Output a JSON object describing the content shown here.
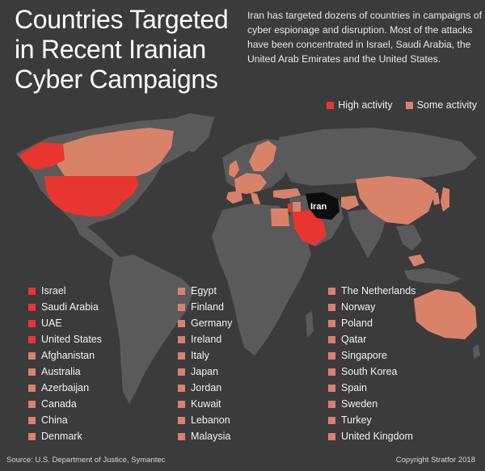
{
  "title": "Countries Targeted in Recent Iranian Cyber Campaigns",
  "subtitle": "Iran has targeted dozens of countries in campaigns of cyber espionage and disruption. Most of the attacks have been concentrated in Israel, Saudi Arabia, the United Arab Emirates and the United States.",
  "legend": {
    "high": "High activity",
    "some": "Some activity"
  },
  "colors": {
    "background": "#3b3b3b",
    "land": "#5a5a5a",
    "high": "#e8352f",
    "some": "#d9826a",
    "iran": "#0d0d0d"
  },
  "map_label": "Iran",
  "countries": {
    "col1": [
      {
        "name": "Israel",
        "level": "high"
      },
      {
        "name": "Saudi Arabia",
        "level": "high"
      },
      {
        "name": "UAE",
        "level": "high"
      },
      {
        "name": "United States",
        "level": "high"
      },
      {
        "name": "Afghanistan",
        "level": "some"
      },
      {
        "name": "Australia",
        "level": "some"
      },
      {
        "name": "Azerbaijan",
        "level": "some"
      },
      {
        "name": "Canada",
        "level": "some"
      },
      {
        "name": "China",
        "level": "some"
      },
      {
        "name": "Denmark",
        "level": "some"
      }
    ],
    "col2": [
      {
        "name": "Egypt",
        "level": "some"
      },
      {
        "name": "Finland",
        "level": "some"
      },
      {
        "name": "Germany",
        "level": "some"
      },
      {
        "name": "Ireland",
        "level": "some"
      },
      {
        "name": "Italy",
        "level": "some"
      },
      {
        "name": "Japan",
        "level": "some"
      },
      {
        "name": "Jordan",
        "level": "some"
      },
      {
        "name": "Kuwait",
        "level": "some"
      },
      {
        "name": "Lebanon",
        "level": "some"
      },
      {
        "name": "Malaysia",
        "level": "some"
      }
    ],
    "col3": [
      {
        "name": "The Netherlands",
        "level": "some"
      },
      {
        "name": "Norway",
        "level": "some"
      },
      {
        "name": "Poland",
        "level": "some"
      },
      {
        "name": "Qatar",
        "level": "some"
      },
      {
        "name": "Singapore",
        "level": "some"
      },
      {
        "name": "South Korea",
        "level": "some"
      },
      {
        "name": "Spain",
        "level": "some"
      },
      {
        "name": "Sweden",
        "level": "some"
      },
      {
        "name": "Turkey",
        "level": "some"
      },
      {
        "name": "United Kingdom",
        "level": "some"
      }
    ]
  },
  "source": "Source: U.S. Department of Justice, Symantec",
  "copyright": "Copyright Stratfor 2018"
}
